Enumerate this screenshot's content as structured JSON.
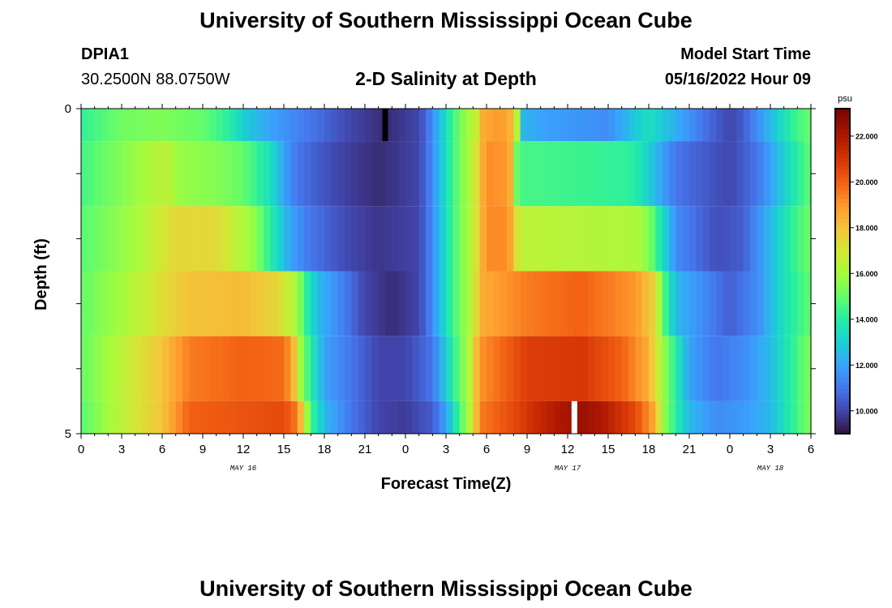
{
  "header": {
    "title": "University of Southern Mississippi Ocean Cube",
    "station_id": "DPIA1",
    "coordinates": "30.2500N  88.0750W",
    "subtitle": "2-D Salinity at Depth",
    "model_start_label": "Model Start Time",
    "model_start_value": "05/16/2022 Hour 09"
  },
  "footer": {
    "title": "University of Southern Mississippi Ocean Cube"
  },
  "chart_data": {
    "type": "heatmap",
    "title": "2-D Salinity at Depth",
    "xlabel": "Forecast Time(Z)",
    "ylabel": "Depth (ft)",
    "x_hours": [
      0,
      54
    ],
    "x_tick_labels": [
      "0",
      "3",
      "6",
      "9",
      "12",
      "15",
      "18",
      "21",
      "0",
      "3",
      "6",
      "9",
      "12",
      "15",
      "18",
      "21",
      "0",
      "3",
      "6"
    ],
    "date_labels": [
      {
        "text": "MAY 16",
        "hour": 12
      },
      {
        "text": "MAY 17",
        "hour": 36
      },
      {
        "text": "MAY 18",
        "hour": 51
      }
    ],
    "y_tick_labels": [
      "0",
      "5"
    ],
    "ylim": [
      0,
      5
    ],
    "colorbar": {
      "unit": "psu",
      "range": [
        9.0,
        23.2
      ],
      "tick_values": [
        10,
        12,
        14,
        16,
        18,
        20,
        22
      ],
      "tick_labels": [
        "10.000",
        "12.000",
        "14.000",
        "16.000",
        "18.000",
        "20.000",
        "22.000"
      ]
    },
    "markers": [
      {
        "hour": 22.5,
        "depth_from": 0,
        "depth_to": 0.5,
        "color": "#000000"
      },
      {
        "hour": 36.5,
        "depth_from": 4.5,
        "depth_to": 5,
        "color": "#ffffff"
      }
    ],
    "depth_layers": [
      {
        "top": 0,
        "bottom": 0.5,
        "keys": [
          [
            0,
            14.2
          ],
          [
            3,
            15.2
          ],
          [
            6,
            15.4
          ],
          [
            9,
            15.0
          ],
          [
            11,
            14.0
          ],
          [
            12,
            13.0
          ],
          [
            14,
            12.0
          ],
          [
            17,
            11.0
          ],
          [
            20,
            10.0
          ],
          [
            22.5,
            9.5
          ],
          [
            25,
            10.0
          ],
          [
            26,
            11.5
          ],
          [
            27,
            13.5
          ],
          [
            28,
            15.2
          ],
          [
            29,
            16.4
          ],
          [
            29.4,
            17.0
          ],
          [
            29.7,
            18.5
          ],
          [
            31,
            19.0
          ],
          [
            32,
            18.2
          ],
          [
            32.3,
            16.0
          ],
          [
            32.6,
            12.5
          ],
          [
            34,
            12.0
          ],
          [
            39,
            11.5
          ],
          [
            40.5,
            12.5
          ],
          [
            42,
            13.5
          ],
          [
            46,
            11.0
          ],
          [
            48,
            10.0
          ],
          [
            49,
            10.5
          ],
          [
            51,
            12.5
          ],
          [
            53,
            14.5
          ],
          [
            54,
            15.0
          ]
        ]
      },
      {
        "top": 0.5,
        "bottom": 1.5,
        "keys": [
          [
            0,
            14.5
          ],
          [
            4,
            15.8
          ],
          [
            6.5,
            16.6
          ],
          [
            7,
            15.8
          ],
          [
            10,
            15.5
          ],
          [
            12,
            15.0
          ],
          [
            14,
            13.5
          ],
          [
            15,
            12.0
          ],
          [
            16,
            11.0
          ],
          [
            19,
            10.0
          ],
          [
            22,
            9.5
          ],
          [
            25,
            10.0
          ],
          [
            26,
            11.5
          ],
          [
            27,
            13.5
          ],
          [
            28,
            15.2
          ],
          [
            29,
            16.5
          ],
          [
            29.5,
            18.0
          ],
          [
            30,
            19.2
          ],
          [
            31.5,
            19.0
          ],
          [
            32,
            18.0
          ],
          [
            32.3,
            14.5
          ],
          [
            34,
            14.5
          ],
          [
            40,
            14.2
          ],
          [
            41,
            14.0
          ],
          [
            42,
            13.0
          ],
          [
            44,
            11.0
          ],
          [
            48,
            10.0
          ],
          [
            50,
            11.0
          ],
          [
            52,
            13.0
          ],
          [
            54,
            15.0
          ]
        ]
      },
      {
        "top": 1.5,
        "bottom": 2.5,
        "keys": [
          [
            0,
            14.8
          ],
          [
            4,
            16.0
          ],
          [
            7,
            17.5
          ],
          [
            10,
            17.4
          ],
          [
            11.5,
            16.5
          ],
          [
            13,
            15.5
          ],
          [
            14,
            14.0
          ],
          [
            15.5,
            12.0
          ],
          [
            17,
            11.0
          ],
          [
            20,
            10.0
          ],
          [
            22,
            9.7
          ],
          [
            25,
            10.0
          ],
          [
            26,
            11.5
          ],
          [
            27,
            13.5
          ],
          [
            28,
            15.2
          ],
          [
            29,
            16.5
          ],
          [
            29.5,
            18.0
          ],
          [
            30,
            19.2
          ],
          [
            31.5,
            19.2
          ],
          [
            32,
            18.3
          ],
          [
            32.4,
            16.5
          ],
          [
            41,
            16.2
          ],
          [
            42,
            15.5
          ],
          [
            43,
            13.5
          ],
          [
            44,
            11.5
          ],
          [
            47,
            10.2
          ],
          [
            49,
            10.5
          ],
          [
            51,
            12.5
          ],
          [
            53,
            14.5
          ],
          [
            54,
            15.2
          ]
        ]
      },
      {
        "top": 2.5,
        "bottom": 3.5,
        "keys": [
          [
            0,
            15.0
          ],
          [
            3,
            16.0
          ],
          [
            6.5,
            17.5
          ],
          [
            8,
            18.0
          ],
          [
            12,
            18.2
          ],
          [
            14.5,
            17.5
          ],
          [
            16,
            16.0
          ],
          [
            16.5,
            14.5
          ],
          [
            17.5,
            12.5
          ],
          [
            19,
            11.5
          ],
          [
            21,
            10.0
          ],
          [
            23,
            9.5
          ],
          [
            25,
            10.0
          ],
          [
            26,
            11.5
          ],
          [
            27,
            13.5
          ],
          [
            28,
            15.2
          ],
          [
            29,
            16.5
          ],
          [
            29.5,
            18.5
          ],
          [
            33,
            19.5
          ],
          [
            37,
            20.0
          ],
          [
            41,
            19.0
          ],
          [
            42.5,
            17.5
          ],
          [
            43,
            15.0
          ],
          [
            44,
            12.5
          ],
          [
            46,
            11.5
          ],
          [
            48,
            10.5
          ],
          [
            50,
            11.5
          ],
          [
            52,
            13.5
          ],
          [
            54,
            15.0
          ]
        ]
      },
      {
        "top": 3.5,
        "bottom": 4.5,
        "keys": [
          [
            0,
            15.0
          ],
          [
            3,
            16.5
          ],
          [
            6,
            18.0
          ],
          [
            8,
            19.5
          ],
          [
            12,
            20.0
          ],
          [
            15,
            19.8
          ],
          [
            15.7,
            18.5
          ],
          [
            16,
            16.5
          ],
          [
            17,
            14.0
          ],
          [
            18,
            12.0
          ],
          [
            20,
            11.0
          ],
          [
            22,
            10.0
          ],
          [
            24,
            10.0
          ],
          [
            26,
            11.0
          ],
          [
            27,
            13.0
          ],
          [
            28,
            15.0
          ],
          [
            29,
            16.8
          ],
          [
            29.4,
            19.0
          ],
          [
            33,
            20.8
          ],
          [
            37,
            21.0
          ],
          [
            40,
            20.0
          ],
          [
            42,
            18.5
          ],
          [
            43,
            16.0
          ],
          [
            44,
            14.0
          ],
          [
            45,
            12.0
          ],
          [
            47,
            11.0
          ],
          [
            49,
            11.5
          ],
          [
            51,
            12.5
          ],
          [
            53,
            14.5
          ],
          [
            54,
            15.5
          ]
        ]
      },
      {
        "top": 4.5,
        "bottom": 5.0,
        "keys": [
          [
            0,
            14.8
          ],
          [
            3,
            16.5
          ],
          [
            6,
            18.0
          ],
          [
            8,
            20.0
          ],
          [
            12,
            20.3
          ],
          [
            15,
            20.5
          ],
          [
            16,
            19.5
          ],
          [
            16.5,
            17.0
          ],
          [
            17,
            14.5
          ],
          [
            18,
            12.5
          ],
          [
            20,
            11.0
          ],
          [
            22,
            10.0
          ],
          [
            24,
            9.8
          ],
          [
            26,
            10.5
          ],
          [
            27,
            12.0
          ],
          [
            28,
            14.5
          ],
          [
            29,
            17.0
          ],
          [
            29.5,
            19.5
          ],
          [
            32,
            20.5
          ],
          [
            34,
            21.5
          ],
          [
            37,
            22.5
          ],
          [
            38.5,
            22.0
          ],
          [
            41,
            20.5
          ],
          [
            42.5,
            18.5
          ],
          [
            43,
            16.0
          ],
          [
            44,
            14.0
          ],
          [
            45,
            12.5
          ],
          [
            47,
            11.5
          ],
          [
            49,
            11.8
          ],
          [
            51,
            12.5
          ],
          [
            53,
            14.5
          ],
          [
            54,
            15.5
          ]
        ]
      }
    ]
  }
}
